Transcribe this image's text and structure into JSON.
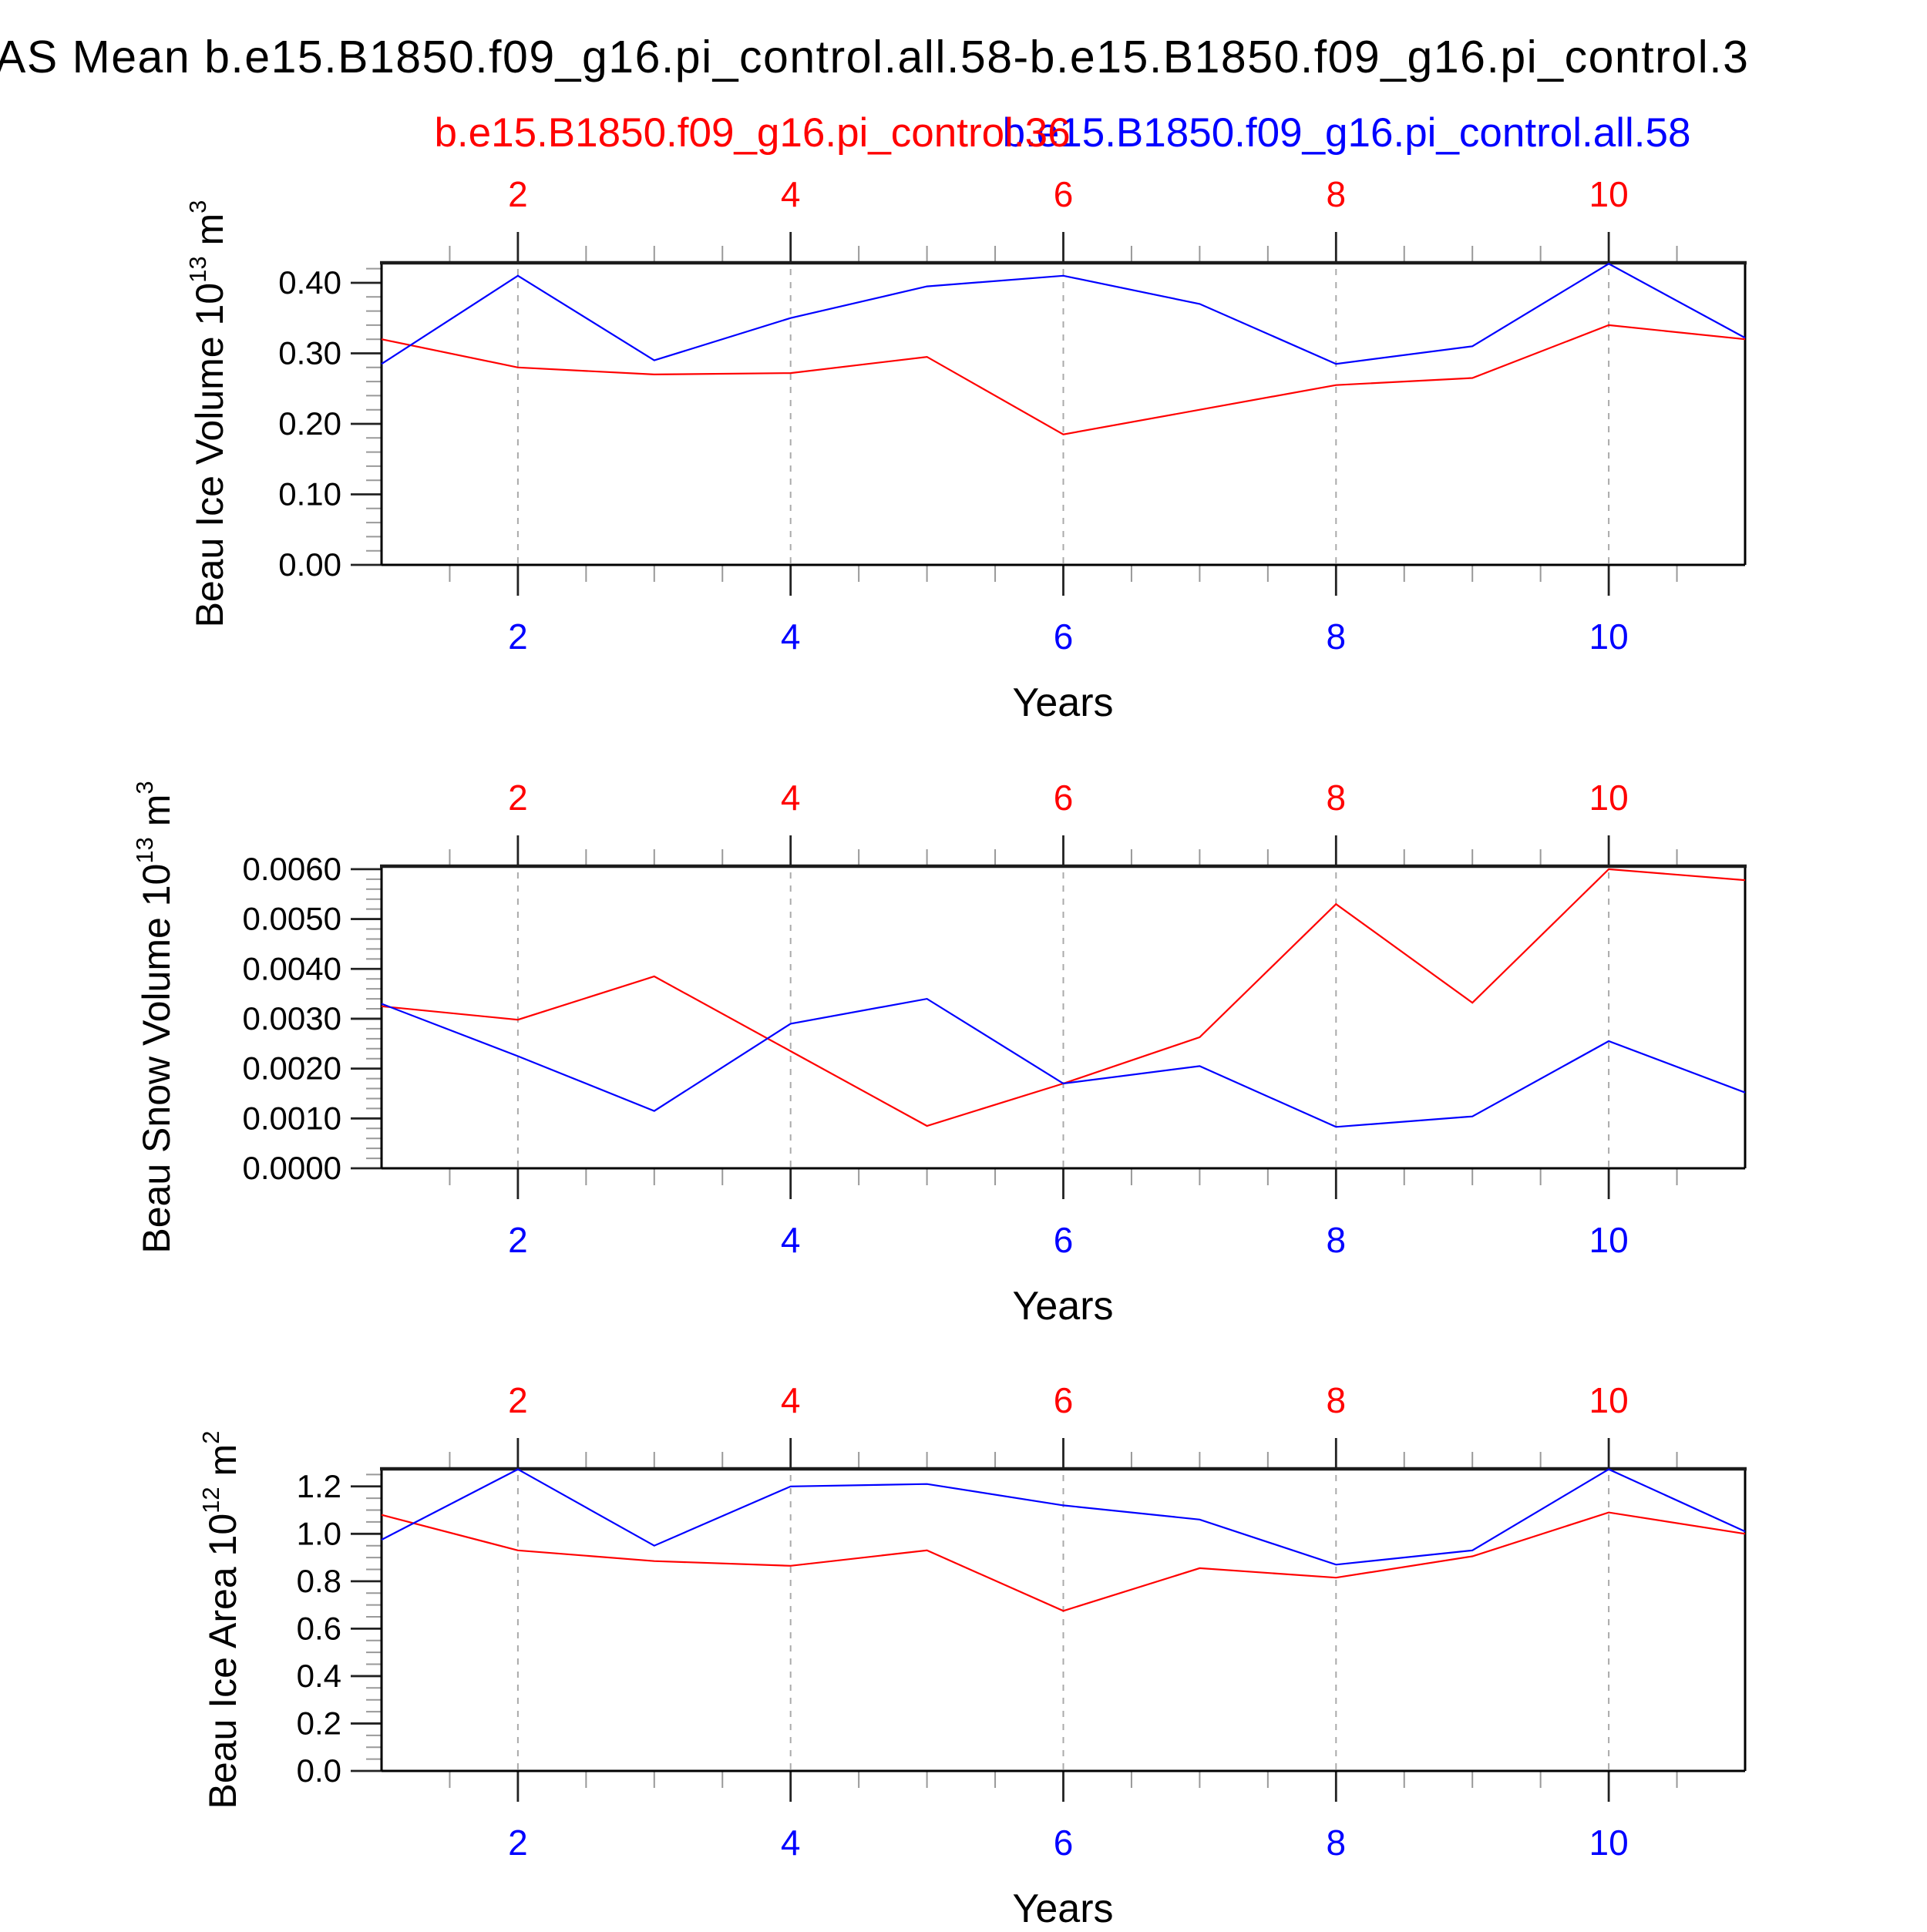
{
  "title": "AS Mean b.e15.B1850.f09_g16.pi_control.all.58-b.e15.B1850.f09_g16.pi_control.3",
  "legend": {
    "red_label": "b.e15.B1850.f09_g16.pi_control.36",
    "blue_label": "b.e15.B1850.f09_g16.pi_control.all.58",
    "red_color": "#ff0000",
    "blue_color": "#0000ff"
  },
  "xaxis": {
    "label": "Years",
    "range": [
      1,
      11
    ],
    "major_ticks": [
      2,
      4,
      6,
      8,
      10
    ],
    "major_tick_labels": [
      "2",
      "4",
      "6",
      "8",
      "10"
    ],
    "minor_tick_step": 0.5,
    "gridlines": "dashed-at-major-ticks"
  },
  "chart_data": [
    {
      "type": "line",
      "id": "beau-ice-volume",
      "ylabel_text": "Beau Ice Volume 10^13 m^3",
      "ylabel_parts": {
        "pre": "Beau Ice Volume 10",
        "sup": "13",
        "mid": " m",
        "sup2": "3"
      },
      "x": [
        1,
        2,
        3,
        4,
        5,
        6,
        7,
        8,
        9,
        10,
        11
      ],
      "ylim": [
        0,
        0.4284
      ],
      "yticks": {
        "labels": [
          "0.00",
          "0.10",
          "0.20",
          "0.30",
          "0.40"
        ],
        "values": [
          0,
          0.1,
          0.2,
          0.3,
          0.4
        ],
        "major_step": 0.1,
        "minor_step": 0.02
      },
      "series": [
        {
          "key": "red",
          "name": "b.e15.B1850.f09_g16.pi_control.36",
          "color": "#ff0000",
          "values": [
            0.32,
            0.28,
            0.27,
            0.272,
            0.295,
            0.185,
            0.22,
            0.255,
            0.265,
            0.34,
            0.32
          ]
        },
        {
          "key": "blue",
          "name": "b.e15.B1850.f09_g16.pi_control.all.58",
          "color": "#0000ff",
          "values": [
            0.285,
            0.41,
            0.29,
            0.35,
            0.395,
            0.41,
            0.37,
            0.285,
            0.31,
            0.427,
            0.322
          ]
        }
      ]
    },
    {
      "type": "line",
      "id": "beau-snow-volume",
      "ylabel_text": "Beau Snow Volume 10^13 m^3",
      "ylabel_parts": {
        "pre": "Beau Snow Volume 10",
        "sup": "13",
        "mid": " m",
        "sup2": "3"
      },
      "x": [
        1,
        2,
        3,
        4,
        5,
        6,
        7,
        8,
        9,
        10,
        11
      ],
      "ylim": [
        0,
        0.00606
      ],
      "yticks": {
        "labels": [
          "0.0000",
          "0.0010",
          "0.0020",
          "0.0030",
          "0.0040",
          "0.0050",
          "0.0060"
        ],
        "values": [
          0,
          0.001,
          0.002,
          0.003,
          0.004,
          0.005,
          0.006
        ],
        "major_step": 0.001,
        "minor_step": 0.0002
      },
      "series": [
        {
          "key": "red",
          "name": "b.e15.B1850.f09_g16.pi_control.36",
          "color": "#ff0000",
          "values": [
            0.00325,
            0.00298,
            0.00385,
            0.00235,
            0.00085,
            0.0017,
            0.00263,
            0.0053,
            0.00332,
            0.006,
            0.00578
          ]
        },
        {
          "key": "blue",
          "name": "b.e15.B1850.f09_g16.pi_control.all.58",
          "color": "#0000ff",
          "values": [
            0.0033,
            0.00225,
            0.00115,
            0.0029,
            0.0034,
            0.0017,
            0.00205,
            0.00083,
            0.00104,
            0.00255,
            0.00152
          ]
        }
      ]
    },
    {
      "type": "line",
      "id": "beau-ice-area",
      "ylabel_text": "Beau Ice Area 10^12 m^2",
      "ylabel_parts": {
        "pre": "Beau Ice Area 10",
        "sup": "12",
        "mid": " m",
        "sup2": "2"
      },
      "x": [
        1,
        2,
        3,
        4,
        5,
        6,
        7,
        8,
        9,
        10,
        11
      ],
      "ylim": [
        0,
        1.274
      ],
      "yticks": {
        "labels": [
          "0.0",
          "0.2",
          "0.4",
          "0.6",
          "0.8",
          "1.0",
          "1.2"
        ],
        "values": [
          0,
          0.2,
          0.4,
          0.6,
          0.8,
          1.0,
          1.2
        ],
        "major_step": 0.2,
        "minor_step": 0.05
      },
      "series": [
        {
          "key": "red",
          "name": "b.e15.B1850.f09_g16.pi_control.36",
          "color": "#ff0000",
          "values": [
            1.08,
            0.93,
            0.885,
            0.865,
            0.93,
            0.675,
            0.855,
            0.815,
            0.905,
            1.09,
            1.0
          ]
        },
        {
          "key": "blue",
          "name": "b.e15.B1850.f09_g16.pi_control.all.58",
          "color": "#0000ff",
          "values": [
            0.975,
            1.272,
            0.95,
            1.2,
            1.21,
            1.12,
            1.06,
            0.87,
            0.93,
            1.272,
            1.01
          ]
        }
      ]
    }
  ]
}
